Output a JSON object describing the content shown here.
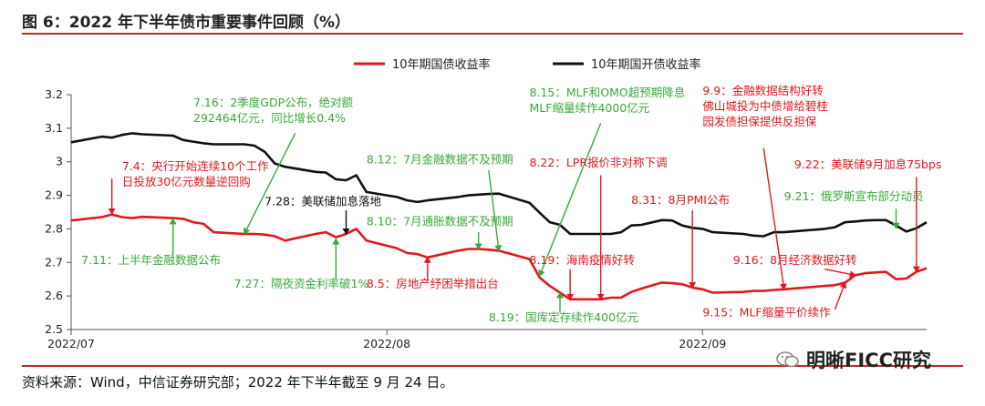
{
  "page": {
    "title": "图 6：2022 年下半年债市重要事件回顾（%）",
    "source": "资料来源：Wind，中信证券研究部；2022 年下半年截至 9 月 24 日。",
    "watermark": "明晰FICC研究"
  },
  "chart_data": {
    "type": "line",
    "title": "",
    "xlabel": "",
    "ylabel": "",
    "ylim": [
      2.5,
      3.2
    ],
    "yticks": [
      2.5,
      2.6,
      2.7,
      2.8,
      2.9,
      3.0,
      3.1,
      3.2
    ],
    "ytick_labels": [
      "2.5",
      "2.6",
      "2.7",
      "2.8",
      "2.9",
      "3",
      "3.1",
      "3.2"
    ],
    "xlim": [
      "2022-07-01",
      "2022-09-23"
    ],
    "xticks": [
      {
        "date": "2022-07-01",
        "label": "2022/07"
      },
      {
        "date": "2022-08-01",
        "label": "2022/08"
      },
      {
        "date": "2022-09-01",
        "label": "2022/09"
      }
    ],
    "legend": "top",
    "grid": false,
    "series": [
      {
        "name": "10年期国债收益率",
        "color": "#e0181e",
        "points": [
          [
            "2022-07-01",
            2.825
          ],
          [
            "2022-07-04",
            2.835
          ],
          [
            "2022-07-05",
            2.843
          ],
          [
            "2022-07-06",
            2.835
          ],
          [
            "2022-07-07",
            2.832
          ],
          [
            "2022-07-08",
            2.836
          ],
          [
            "2022-07-11",
            2.832
          ],
          [
            "2022-07-12",
            2.83
          ],
          [
            "2022-07-13",
            2.82
          ],
          [
            "2022-07-14",
            2.815
          ],
          [
            "2022-07-15",
            2.79
          ],
          [
            "2022-07-18",
            2.785
          ],
          [
            "2022-07-19",
            2.785
          ],
          [
            "2022-07-20",
            2.783
          ],
          [
            "2022-07-21",
            2.778
          ],
          [
            "2022-07-22",
            2.765
          ],
          [
            "2022-07-25",
            2.785
          ],
          [
            "2022-07-26",
            2.79
          ],
          [
            "2022-07-27",
            2.775
          ],
          [
            "2022-07-28",
            2.785
          ],
          [
            "2022-07-29",
            2.8
          ],
          [
            "2022-07-30",
            2.765
          ],
          [
            "2022-08-01",
            2.75
          ],
          [
            "2022-08-02",
            2.742
          ],
          [
            "2022-08-03",
            2.728
          ],
          [
            "2022-08-04",
            2.725
          ],
          [
            "2022-08-05",
            2.715
          ],
          [
            "2022-08-08",
            2.735
          ],
          [
            "2022-08-09",
            2.74
          ],
          [
            "2022-08-10",
            2.74
          ],
          [
            "2022-08-11",
            2.738
          ],
          [
            "2022-08-12",
            2.735
          ],
          [
            "2022-08-15",
            2.71
          ],
          [
            "2022-08-16",
            2.655
          ],
          [
            "2022-08-17",
            2.63
          ],
          [
            "2022-08-18",
            2.61
          ],
          [
            "2022-08-19",
            2.59
          ],
          [
            "2022-08-22",
            2.59
          ],
          [
            "2022-08-23",
            2.595
          ],
          [
            "2022-08-24",
            2.595
          ],
          [
            "2022-08-25",
            2.612
          ],
          [
            "2022-08-26",
            2.622
          ],
          [
            "2022-08-28",
            2.64
          ],
          [
            "2022-08-29",
            2.638
          ],
          [
            "2022-08-30",
            2.635
          ],
          [
            "2022-08-31",
            2.625
          ],
          [
            "2022-09-01",
            2.62
          ],
          [
            "2022-09-02",
            2.61
          ],
          [
            "2022-09-05",
            2.612
          ],
          [
            "2022-09-06",
            2.615
          ],
          [
            "2022-09-07",
            2.615
          ],
          [
            "2022-09-08",
            2.618
          ],
          [
            "2022-09-09",
            2.62
          ],
          [
            "2022-09-13",
            2.63
          ],
          [
            "2022-09-14",
            2.632
          ],
          [
            "2022-09-15",
            2.64
          ],
          [
            "2022-09-16",
            2.662
          ],
          [
            "2022-09-17",
            2.668
          ],
          [
            "2022-09-18",
            2.67
          ],
          [
            "2022-09-19",
            2.672
          ],
          [
            "2022-09-20",
            2.65
          ],
          [
            "2022-09-21",
            2.652
          ],
          [
            "2022-09-22",
            2.672
          ],
          [
            "2022-09-23",
            2.683
          ]
        ]
      },
      {
        "name": "10年期国开债收益率",
        "color": "#111111",
        "points": [
          [
            "2022-07-01",
            3.058
          ],
          [
            "2022-07-04",
            3.075
          ],
          [
            "2022-07-05",
            3.072
          ],
          [
            "2022-07-06",
            3.08
          ],
          [
            "2022-07-07",
            3.085
          ],
          [
            "2022-07-08",
            3.082
          ],
          [
            "2022-07-11",
            3.078
          ],
          [
            "2022-07-12",
            3.065
          ],
          [
            "2022-07-13",
            3.06
          ],
          [
            "2022-07-14",
            3.055
          ],
          [
            "2022-07-15",
            3.052
          ],
          [
            "2022-07-18",
            3.052
          ],
          [
            "2022-07-19",
            3.048
          ],
          [
            "2022-07-20",
            3.03
          ],
          [
            "2022-07-21",
            2.995
          ],
          [
            "2022-07-22",
            2.985
          ],
          [
            "2022-07-25",
            2.97
          ],
          [
            "2022-07-26",
            2.968
          ],
          [
            "2022-07-27",
            2.948
          ],
          [
            "2022-07-28",
            2.945
          ],
          [
            "2022-07-29",
            2.96
          ],
          [
            "2022-07-30",
            2.91
          ],
          [
            "2022-08-01",
            2.9
          ],
          [
            "2022-08-02",
            2.895
          ],
          [
            "2022-08-03",
            2.885
          ],
          [
            "2022-08-04",
            2.88
          ],
          [
            "2022-08-05",
            2.885
          ],
          [
            "2022-08-08",
            2.895
          ],
          [
            "2022-08-09",
            2.9
          ],
          [
            "2022-08-10",
            2.902
          ],
          [
            "2022-08-11",
            2.904
          ],
          [
            "2022-08-12",
            2.905
          ],
          [
            "2022-08-15",
            2.878
          ],
          [
            "2022-08-16",
            2.848
          ],
          [
            "2022-08-17",
            2.82
          ],
          [
            "2022-08-18",
            2.812
          ],
          [
            "2022-08-19",
            2.785
          ],
          [
            "2022-08-22",
            2.785
          ],
          [
            "2022-08-23",
            2.785
          ],
          [
            "2022-08-24",
            2.79
          ],
          [
            "2022-08-25",
            2.81
          ],
          [
            "2022-08-26",
            2.812
          ],
          [
            "2022-08-28",
            2.826
          ],
          [
            "2022-08-29",
            2.825
          ],
          [
            "2022-08-30",
            2.81
          ],
          [
            "2022-08-31",
            2.803
          ],
          [
            "2022-09-01",
            2.8
          ],
          [
            "2022-09-02",
            2.79
          ],
          [
            "2022-09-05",
            2.785
          ],
          [
            "2022-09-06",
            2.78
          ],
          [
            "2022-09-07",
            2.778
          ],
          [
            "2022-09-08",
            2.79
          ],
          [
            "2022-09-09",
            2.79
          ],
          [
            "2022-09-13",
            2.8
          ],
          [
            "2022-09-14",
            2.805
          ],
          [
            "2022-09-15",
            2.82
          ],
          [
            "2022-09-16",
            2.822
          ],
          [
            "2022-09-17",
            2.825
          ],
          [
            "2022-09-18",
            2.826
          ],
          [
            "2022-09-19",
            2.826
          ],
          [
            "2022-09-20",
            2.81
          ],
          [
            "2022-09-21",
            2.792
          ],
          [
            "2022-09-22",
            2.802
          ],
          [
            "2022-09-23",
            2.82
          ]
        ]
      }
    ],
    "annotations": [
      {
        "lines": [
          "7.4：央行开始连续10个工作",
          "日投放30亿元数量逆回购"
        ],
        "color": "#e0181e",
        "tx": "2022-07-06",
        "ty": 2.975,
        "ax": "2022-07-05",
        "ay": 2.845,
        "bx": "2022-07-05",
        "by": 2.95
      },
      {
        "lines": [
          "7.16：2季度GDP公布，绝对额",
          "292464亿元，同比增长0.4%"
        ],
        "color": "#3aa83a",
        "tx": "2022-07-13",
        "ty": 3.165,
        "ax": "2022-07-18",
        "ay": 2.785,
        "bx": "2022-07-23",
        "by": 3.085
      },
      {
        "lines": [
          "7.11：上半年金融数据公布"
        ],
        "color": "#3aa83a",
        "tx": "2022-07-02",
        "ty": 2.695,
        "ax": "2022-07-11",
        "ay": 2.83,
        "bx": "2022-07-11",
        "by": 2.72
      },
      {
        "lines": [
          "7.28：美联储加息落地"
        ],
        "color": "#111111",
        "tx": "2022-07-20",
        "ty": 2.87,
        "ax": "2022-07-28",
        "ay": 2.785,
        "bx": "2022-07-28",
        "by": 2.855
      },
      {
        "lines": [
          "7.27：隔夜资金利率破1%"
        ],
        "color": "#3aa83a",
        "tx": "2022-07-17",
        "ty": 2.625,
        "ax": "2022-07-27",
        "ay": 2.77,
        "bx": "2022-07-27",
        "by": 2.65
      },
      {
        "lines": [
          "8.12：7月金融数据不及预期"
        ],
        "color": "#3aa83a",
        "tx": "2022-07-30",
        "ty": 2.995,
        "ax": "2022-08-12",
        "ay": 2.735,
        "bx": "2022-08-11",
        "by": 2.975
      },
      {
        "lines": [
          "8.10：7月通胀数据不及预期"
        ],
        "color": "#3aa83a",
        "tx": "2022-07-30",
        "ty": 2.81,
        "ax": "2022-08-10",
        "ay": 2.74,
        "bx": "2022-08-10",
        "by": 2.79
      },
      {
        "lines": [
          "8.5：房地产纾困举措出台"
        ],
        "color": "#e0181e",
        "tx": "2022-07-30",
        "ty": 2.625,
        "ax": "2022-08-05",
        "ay": 2.715,
        "bx": "2022-08-05",
        "by": 2.645
      },
      {
        "lines": [
          "8.15：MLF和OMO超预期降息",
          "MLF缩量续作4000亿元"
        ],
        "color": "#3aa83a",
        "tx": "2022-08-15",
        "ty": 3.195,
        "ax": "2022-08-16",
        "ay": 2.66,
        "bx": "2022-08-22",
        "by": 3.115
      },
      {
        "lines": [
          "8.22：LPR报价非对称下调"
        ],
        "color": "#e0181e",
        "tx": "2022-08-15",
        "ty": 2.985,
        "ax": "2022-08-22",
        "ay": 2.59,
        "bx": "2022-08-22",
        "by": 2.96
      },
      {
        "lines": [
          "8.19：海南疫情好转"
        ],
        "color": "#e0181e",
        "tx": "2022-08-15",
        "ty": 2.695,
        "ax": "2022-08-19",
        "ay": 2.59,
        "bx": "2022-08-19",
        "by": 2.68
      },
      {
        "lines": [
          "8.19：国库定存续作400亿元"
        ],
        "color": "#3aa83a",
        "tx": "2022-08-11",
        "ty": 2.525,
        "ax": "2022-08-18",
        "ay": 2.61,
        "bx": "2022-08-18",
        "by": 2.55
      },
      {
        "lines": [
          "8.31：8月PMI公布"
        ],
        "color": "#e0181e",
        "tx": "2022-08-25",
        "ty": 2.875,
        "ax": "2022-08-31",
        "ay": 2.625,
        "bx": "2022-08-31",
        "by": 2.855
      },
      {
        "lines": [
          "9.9：金融数据结构好转",
          "佛山城投为中债增给碧桂",
          "园发债担保提供反担保"
        ],
        "color": "#e0181e",
        "tx": "2022-09-01",
        "ty": 3.2,
        "ax": "2022-09-09",
        "ay": 2.62,
        "bx": "2022-09-07",
        "by": 3.04
      },
      {
        "lines": [
          "9.22：美联储9月加息75bps"
        ],
        "color": "#e0181e",
        "tx": "2022-09-10",
        "ty": 2.98,
        "ax": "2022-09-22",
        "ay": 2.672,
        "bx": "2022-09-22",
        "by": 2.955
      },
      {
        "lines": [
          "9.21：俄罗斯宣布部分动员"
        ],
        "color": "#3aa83a",
        "tx": "2022-09-09",
        "ty": 2.885,
        "ax": "2022-09-20",
        "ay": 2.802,
        "bx": "2022-09-20",
        "by": 2.86
      },
      {
        "lines": [
          "9.16：8月经济数据好转"
        ],
        "color": "#e0181e",
        "tx": "2022-09-04",
        "ty": 2.695,
        "ax": "2022-09-16",
        "ay": 2.662,
        "bx": "2022-09-13",
        "by": 2.68
      },
      {
        "lines": [
          "9.15：MLF缩量平价续作"
        ],
        "color": "#e0181e",
        "tx": "2022-09-01",
        "ty": 2.54,
        "ax": "2022-09-15",
        "ay": 2.64,
        "bx": "2022-09-14",
        "by": 2.56
      }
    ]
  }
}
